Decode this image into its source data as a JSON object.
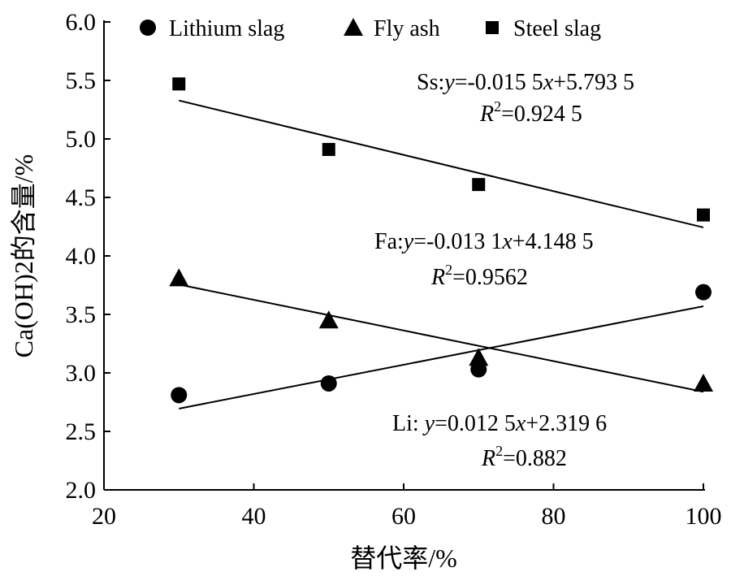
{
  "chart_data": {
    "type": "scatter",
    "xlabel": "替代率/%",
    "ylabel": "Ca(OH)2的含量/%",
    "xlim": [
      20,
      100
    ],
    "ylim": [
      2.0,
      6.0
    ],
    "xticks": [
      "20",
      "40",
      "60",
      "80",
      "100"
    ],
    "yticks": [
      "2.0",
      "2.5",
      "3.0",
      "3.5",
      "4.0",
      "4.5",
      "5.0",
      "5.5",
      "6.0"
    ],
    "grid": false,
    "legend_position": "top",
    "series": [
      {
        "name": "Lithium slag",
        "marker": "circle",
        "x": [
          30,
          50,
          70,
          100
        ],
        "y": [
          2.81,
          2.91,
          3.03,
          3.69
        ],
        "fit": {
          "slope": 0.0125,
          "intercept": 2.3196
        },
        "equation": {
          "prefix": "Li: ",
          "y": "y",
          "body": "=0.012 5",
          "x": "x",
          "tail": "+2.319 6"
        },
        "r2": {
          "R": "R",
          "sup": "2",
          "value": "=0.882"
        }
      },
      {
        "name": "Fly ash",
        "marker": "triangle",
        "x": [
          30,
          50,
          70,
          100
        ],
        "y": [
          3.81,
          3.45,
          3.13,
          2.91
        ],
        "fit": {
          "slope": -0.0131,
          "intercept": 4.1485
        },
        "equation": {
          "prefix": "Fa:",
          "y": "y",
          "body": "=-0.013 1",
          "x": "x",
          "tail": "+4.148 5"
        },
        "r2": {
          "R": "R",
          "sup": "2",
          "value": "=0.9562"
        }
      },
      {
        "name": "Steel slag",
        "marker": "square",
        "x": [
          30,
          50,
          70,
          100
        ],
        "y": [
          5.47,
          4.91,
          4.61,
          4.35
        ],
        "fit": {
          "slope": -0.0155,
          "intercept": 5.7935
        },
        "equation": {
          "prefix": "Ss:",
          "y": "y",
          "body": "=-0.015 5",
          "x": "x",
          "tail": "+5.793 5"
        },
        "r2": {
          "R": "R",
          "sup": "2",
          "value": "=0.924 5"
        }
      }
    ]
  }
}
